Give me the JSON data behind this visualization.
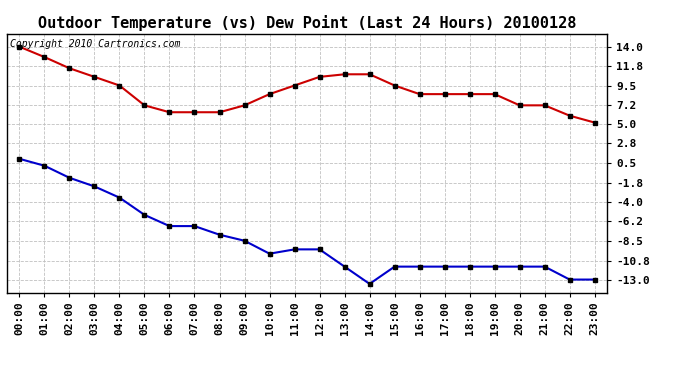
{
  "title": "Outdoor Temperature (vs) Dew Point (Last 24 Hours) 20100128",
  "copyright_text": "Copyright 2010 Cartronics.com",
  "x_labels": [
    "00:00",
    "01:00",
    "02:00",
    "03:00",
    "04:00",
    "05:00",
    "06:00",
    "07:00",
    "08:00",
    "09:00",
    "10:00",
    "11:00",
    "12:00",
    "13:00",
    "14:00",
    "15:00",
    "16:00",
    "17:00",
    "18:00",
    "19:00",
    "20:00",
    "21:00",
    "22:00",
    "23:00"
  ],
  "temp_data": [
    14.0,
    12.8,
    11.5,
    10.5,
    9.5,
    7.2,
    6.4,
    6.4,
    6.4,
    7.2,
    8.5,
    9.5,
    10.5,
    10.8,
    10.8,
    9.5,
    8.5,
    8.5,
    8.5,
    8.5,
    7.2,
    7.2,
    6.0,
    5.2
  ],
  "dew_data": [
    1.0,
    0.2,
    -1.2,
    -2.2,
    -3.5,
    -5.5,
    -6.8,
    -6.8,
    -7.8,
    -8.5,
    -10.0,
    -9.5,
    -9.5,
    -11.5,
    -13.5,
    -11.5,
    -11.5,
    -11.5,
    -11.5,
    -11.5,
    -11.5,
    -11.5,
    -13.0,
    -13.0
  ],
  "temp_color": "#cc0000",
  "dew_color": "#0000cc",
  "marker": "s",
  "marker_size": 3,
  "marker_color": "black",
  "line_width": 1.5,
  "ylim": [
    -14.5,
    15.5
  ],
  "yticks": [
    14.0,
    11.8,
    9.5,
    7.2,
    5.0,
    2.8,
    0.5,
    -1.8,
    -4.0,
    -6.2,
    -8.5,
    -10.8,
    -13.0
  ],
  "grid_color": "#c0c0c0",
  "bg_color": "#ffffff",
  "title_fontsize": 11,
  "tick_fontsize": 8,
  "copyright_fontsize": 7
}
